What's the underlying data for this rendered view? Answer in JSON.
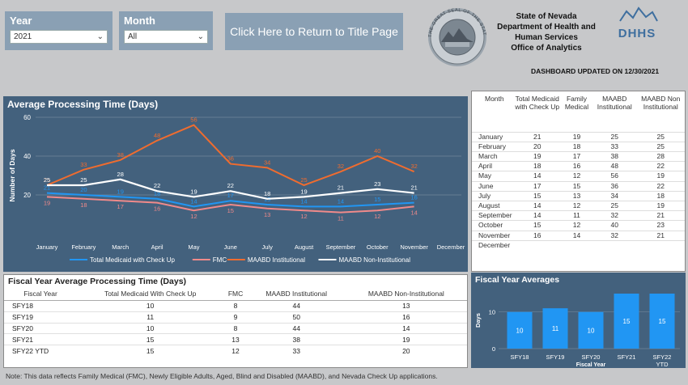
{
  "filters": {
    "year": {
      "label": "Year",
      "value": "2021"
    },
    "month": {
      "label": "Month",
      "value": "All"
    }
  },
  "title_button": "Click Here to Return to Title Page",
  "org": {
    "line1": "State of Nevada",
    "line2": "Department of Health and",
    "line3": "Human Services",
    "line4": "Office of Analytics"
  },
  "updated": "DASHBOARD UPDATED ON 12/30/2021",
  "colors": {
    "panel": "#43617d",
    "blue": "#2196f3",
    "pink": "#f08a8a",
    "orange": "#ef6c2f",
    "white": "#ffffff"
  },
  "chart_data": [
    {
      "type": "line",
      "title": "Average Processing Time (Days)",
      "ylabel": "Number of Days",
      "ylim": [
        0,
        60
      ],
      "yticks": [
        20,
        40,
        60
      ],
      "categories": [
        "January",
        "February",
        "March",
        "April",
        "May",
        "June",
        "July",
        "August",
        "September",
        "October",
        "November",
        "December"
      ],
      "series": [
        {
          "name": "Total Medicaid with Check Up",
          "color": "#2196f3",
          "values": [
            21,
            20,
            19,
            18,
            14,
            17,
            15,
            14,
            14,
            15,
            16,
            null
          ]
        },
        {
          "name": "FMC",
          "color": "#f08a8a",
          "values": [
            19,
            18,
            17,
            16,
            12,
            15,
            13,
            12,
            11,
            12,
            14,
            null
          ]
        },
        {
          "name": "MAABD Institutional",
          "color": "#ef6c2f",
          "values": [
            25,
            33,
            38,
            48,
            56,
            36,
            34,
            25,
            32,
            40,
            32,
            null
          ]
        },
        {
          "name": "MAABD Non-Institutional",
          "color": "#ffffff",
          "values": [
            25,
            25,
            28,
            22,
            19,
            22,
            18,
            19,
            21,
            23,
            21,
            null
          ]
        }
      ]
    },
    {
      "type": "bar",
      "title": "Fiscal Year Averages",
      "xlabel": "Fiscal Year",
      "ylabel": "Days",
      "ylim": [
        0,
        15
      ],
      "yticks": [
        0,
        10
      ],
      "categories": [
        "SFY18",
        "SFY19",
        "SFY20",
        "SFY21",
        "SFY22 YTD"
      ],
      "category_lines": [
        [
          "SFY18"
        ],
        [
          "SFY19"
        ],
        [
          "SFY20"
        ],
        [
          "SFY21"
        ],
        [
          "SFY22",
          "YTD"
        ]
      ],
      "values": [
        10,
        11,
        10,
        15,
        15
      ]
    }
  ],
  "month_table": {
    "headers": [
      "Month",
      "Total Medicaid with Check Up",
      "Family Medical",
      "MAABD Institutional",
      "MAABD Non Institutional"
    ],
    "rows": [
      [
        "January",
        "21",
        "19",
        "25",
        "25"
      ],
      [
        "February",
        "20",
        "18",
        "33",
        "25"
      ],
      [
        "March",
        "19",
        "17",
        "38",
        "28"
      ],
      [
        "April",
        "18",
        "16",
        "48",
        "22"
      ],
      [
        "May",
        "14",
        "12",
        "56",
        "19"
      ],
      [
        "June",
        "17",
        "15",
        "36",
        "22"
      ],
      [
        "July",
        "15",
        "13",
        "34",
        "18"
      ],
      [
        "August",
        "14",
        "12",
        "25",
        "19"
      ],
      [
        "September",
        "14",
        "11",
        "32",
        "21"
      ],
      [
        "October",
        "15",
        "12",
        "40",
        "23"
      ],
      [
        "November",
        "16",
        "14",
        "32",
        "21"
      ],
      [
        "December",
        "",
        "",
        "",
        ""
      ]
    ]
  },
  "fy_table": {
    "title": "Fiscal Year Average Processing Time (Days)",
    "headers": [
      "Fiscal Year",
      "Total Medicaid With Check Up",
      "FMC",
      "MAABD Institutional",
      "MAABD Non-Institutional"
    ],
    "rows": [
      [
        "SFY18",
        "10",
        "8",
        "44",
        "13"
      ],
      [
        "SFY19",
        "11",
        "9",
        "50",
        "16"
      ],
      [
        "SFY20",
        "10",
        "8",
        "44",
        "14"
      ],
      [
        "SFY21",
        "15",
        "13",
        "38",
        "19"
      ],
      [
        "SFY22 YTD",
        "15",
        "12",
        "33",
        "20"
      ]
    ]
  },
  "note": "Note:  This data reflects Family Medical (FMC), Newly Eligible Adults, Aged, Blind and Disabled (MAABD), and Nevada Check Up applications.",
  "seal_text": "THE GREAT SEAL OF THE STATE OF NEVADA",
  "logo_text": "DHHS"
}
